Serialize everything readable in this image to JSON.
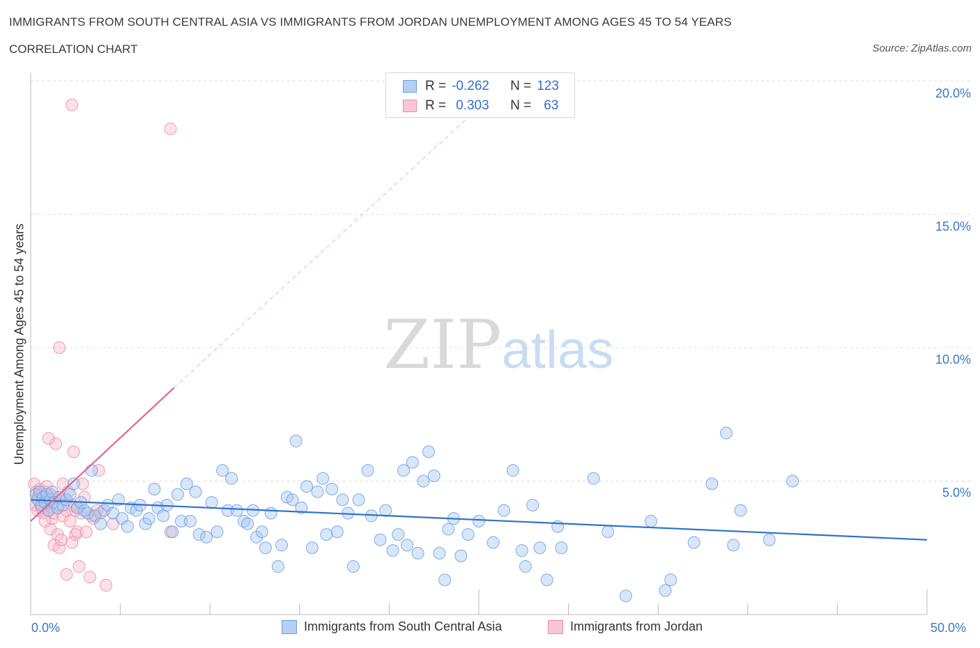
{
  "title": "IMMIGRANTS FROM SOUTH CENTRAL ASIA VS IMMIGRANTS FROM JORDAN UNEMPLOYMENT AMONG AGES 45 TO 54 YEARS",
  "subtitle": "CORRELATION CHART",
  "source": "Source: ZipAtlas.com",
  "watermark": {
    "zip": "ZIP",
    "atlas": "atlas"
  },
  "legend": {
    "r_label": "R =",
    "n_label": "N =",
    "rows": [
      {
        "r": "-0.262",
        "n": "123"
      },
      {
        "r": "0.303",
        "n": "63"
      }
    ]
  },
  "colors": {
    "blue_fill": "#a9c8ef",
    "blue_stroke": "#6a9ee0",
    "blue_line": "#2f72cc",
    "pink_fill": "#f7bccd",
    "pink_stroke": "#ec8aa8",
    "pink_line": "#e4658f",
    "tick_label": "#3a78c6",
    "grid": "#dcdcdc"
  },
  "chart_data": {
    "type": "scatter",
    "title": "IMMIGRANTS FROM SOUTH CENTRAL ASIA VS IMMIGRANTS FROM JORDAN UNEMPLOYMENT AMONG AGES 45 TO 54 YEARS",
    "xlabel": "",
    "ylabel": "Unemployment Among Ages 45 to 54 years",
    "xlim": [
      0,
      50
    ],
    "ylim": [
      0,
      20
    ],
    "x_tick_labels": [
      "0.0%",
      "50.0%"
    ],
    "y_tick_labels": [
      "5.0%",
      "10.0%",
      "15.0%",
      "20.0%"
    ],
    "y_ticks": [
      5,
      10,
      15,
      20
    ],
    "grid": true,
    "legend_position": "top-center",
    "series": [
      {
        "name": "Immigrants from South Central Asia",
        "color": "blue",
        "r": -0.262,
        "n": 123,
        "trend": {
          "x": [
            0,
            50
          ],
          "y": [
            4.3,
            2.8
          ],
          "style": "solid"
        },
        "points": [
          [
            0.3,
            4.5
          ],
          [
            0.4,
            4.3
          ],
          [
            0.5,
            4.6
          ],
          [
            0.6,
            4.1
          ],
          [
            0.7,
            4.4
          ],
          [
            0.8,
            4.2
          ],
          [
            0.9,
            4.5
          ],
          [
            1.0,
            3.9
          ],
          [
            1.1,
            4.3
          ],
          [
            1.2,
            4.6
          ],
          [
            1.3,
            4.2
          ],
          [
            1.5,
            4.0
          ],
          [
            1.6,
            4.4
          ],
          [
            1.8,
            4.1
          ],
          [
            2.0,
            4.3
          ],
          [
            2.2,
            4.5
          ],
          [
            2.4,
            4.9
          ],
          [
            2.6,
            4.0
          ],
          [
            2.8,
            4.2
          ],
          [
            3.0,
            3.9
          ],
          [
            3.2,
            3.8
          ],
          [
            3.4,
            5.4
          ],
          [
            3.6,
            3.7
          ],
          [
            3.9,
            3.4
          ],
          [
            4.1,
            3.9
          ],
          [
            4.3,
            4.1
          ],
          [
            4.6,
            3.8
          ],
          [
            4.9,
            4.3
          ],
          [
            5.1,
            3.6
          ],
          [
            5.4,
            3.3
          ],
          [
            5.6,
            4.0
          ],
          [
            5.9,
            3.9
          ],
          [
            6.1,
            4.1
          ],
          [
            6.4,
            3.4
          ],
          [
            6.6,
            3.6
          ],
          [
            6.9,
            4.7
          ],
          [
            7.1,
            4.0
          ],
          [
            7.4,
            3.7
          ],
          [
            7.6,
            4.1
          ],
          [
            7.9,
            3.1
          ],
          [
            8.2,
            4.5
          ],
          [
            8.4,
            3.5
          ],
          [
            8.7,
            4.9
          ],
          [
            8.9,
            3.5
          ],
          [
            9.2,
            4.6
          ],
          [
            9.4,
            3.0
          ],
          [
            9.8,
            2.9
          ],
          [
            10.1,
            4.2
          ],
          [
            10.4,
            3.1
          ],
          [
            10.7,
            5.4
          ],
          [
            11.0,
            3.9
          ],
          [
            11.2,
            5.1
          ],
          [
            11.5,
            3.9
          ],
          [
            11.9,
            3.5
          ],
          [
            12.1,
            3.4
          ],
          [
            12.4,
            3.9
          ],
          [
            12.6,
            2.9
          ],
          [
            12.9,
            3.1
          ],
          [
            13.1,
            2.5
          ],
          [
            13.4,
            3.8
          ],
          [
            13.8,
            1.8
          ],
          [
            14.0,
            2.6
          ],
          [
            14.3,
            4.4
          ],
          [
            14.6,
            4.3
          ],
          [
            14.8,
            6.5
          ],
          [
            15.1,
            4.0
          ],
          [
            15.4,
            4.8
          ],
          [
            15.7,
            2.5
          ],
          [
            16.0,
            4.6
          ],
          [
            16.3,
            5.1
          ],
          [
            16.5,
            3.0
          ],
          [
            16.8,
            4.7
          ],
          [
            17.1,
            3.1
          ],
          [
            17.4,
            4.3
          ],
          [
            17.7,
            3.8
          ],
          [
            18.0,
            1.8
          ],
          [
            18.3,
            4.3
          ],
          [
            18.8,
            5.4
          ],
          [
            19.0,
            3.7
          ],
          [
            19.5,
            2.8
          ],
          [
            19.8,
            3.9
          ],
          [
            20.2,
            2.4
          ],
          [
            20.5,
            3.0
          ],
          [
            20.8,
            5.4
          ],
          [
            21.0,
            2.6
          ],
          [
            21.3,
            5.7
          ],
          [
            21.6,
            2.3
          ],
          [
            21.9,
            5.0
          ],
          [
            22.2,
            6.1
          ],
          [
            22.5,
            5.2
          ],
          [
            22.8,
            2.3
          ],
          [
            23.1,
            1.3
          ],
          [
            23.3,
            3.2
          ],
          [
            23.6,
            3.6
          ],
          [
            24.0,
            2.2
          ],
          [
            24.4,
            3.0
          ],
          [
            25.0,
            3.5
          ],
          [
            25.8,
            2.7
          ],
          [
            26.4,
            3.9
          ],
          [
            26.9,
            5.4
          ],
          [
            27.4,
            2.4
          ],
          [
            27.6,
            1.8
          ],
          [
            28.0,
            4.1
          ],
          [
            28.4,
            2.5
          ],
          [
            28.8,
            1.3
          ],
          [
            29.4,
            3.3
          ],
          [
            29.6,
            2.5
          ],
          [
            31.4,
            5.1
          ],
          [
            32.2,
            3.1
          ],
          [
            33.2,
            0.7
          ],
          [
            34.6,
            3.5
          ],
          [
            35.4,
            0.9
          ],
          [
            35.7,
            1.3
          ],
          [
            37.0,
            2.7
          ],
          [
            38.0,
            4.9
          ],
          [
            38.8,
            6.8
          ],
          [
            39.2,
            2.6
          ],
          [
            39.6,
            3.9
          ],
          [
            41.2,
            2.8
          ],
          [
            42.5,
            5.0
          ]
        ]
      },
      {
        "name": "Immigrants from Jordan",
        "color": "pink",
        "r": 0.303,
        "n": 63,
        "trend": {
          "x": [
            0,
            8
          ],
          "y": [
            3.5,
            8.5
          ],
          "style": "solid",
          "extension": {
            "x": [
              8,
              25
            ],
            "y": [
              8.5,
              19.0
            ],
            "style": "dashed"
          }
        },
        "points": [
          [
            0.2,
            4.9
          ],
          [
            0.3,
            4.6
          ],
          [
            0.3,
            4.1
          ],
          [
            0.4,
            4.4
          ],
          [
            0.4,
            3.9
          ],
          [
            0.5,
            4.7
          ],
          [
            0.5,
            4.2
          ],
          [
            0.6,
            4.5
          ],
          [
            0.6,
            4.0
          ],
          [
            0.7,
            4.3
          ],
          [
            0.7,
            3.8
          ],
          [
            0.8,
            4.6
          ],
          [
            0.8,
            4.1
          ],
          [
            0.9,
            4.8
          ],
          [
            0.9,
            4.4
          ],
          [
            1.0,
            3.9
          ],
          [
            1.0,
            4.2
          ],
          [
            1.1,
            3.2
          ],
          [
            1.1,
            4.5
          ],
          [
            1.2,
            3.6
          ],
          [
            1.2,
            4.0
          ],
          [
            1.3,
            2.6
          ],
          [
            1.3,
            3.8
          ],
          [
            1.4,
            6.4
          ],
          [
            1.4,
            4.4
          ],
          [
            1.5,
            3.0
          ],
          [
            1.6,
            2.5
          ],
          [
            1.6,
            4.1
          ],
          [
            1.7,
            2.8
          ],
          [
            1.8,
            4.9
          ],
          [
            1.8,
            3.7
          ],
          [
            1.9,
            4.3
          ],
          [
            2.0,
            3.9
          ],
          [
            2.0,
            1.5
          ],
          [
            2.1,
            4.6
          ],
          [
            2.2,
            3.5
          ],
          [
            2.3,
            2.7
          ],
          [
            2.3,
            4.1
          ],
          [
            2.4,
            6.1
          ],
          [
            2.5,
            3.0
          ],
          [
            2.6,
            3.1
          ],
          [
            2.6,
            4.0
          ],
          [
            2.7,
            1.8
          ],
          [
            2.8,
            3.8
          ],
          [
            2.9,
            4.9
          ],
          [
            3.0,
            4.4
          ],
          [
            3.1,
            3.1
          ],
          [
            3.3,
            1.4
          ],
          [
            3.4,
            3.7
          ],
          [
            3.5,
            3.6
          ],
          [
            3.7,
            3.9
          ],
          [
            3.8,
            5.4
          ],
          [
            3.9,
            3.8
          ],
          [
            4.2,
            1.1
          ],
          [
            4.6,
            3.4
          ],
          [
            7.8,
            3.1
          ],
          [
            0.6,
            4.0
          ],
          [
            1.6,
            10.0
          ],
          [
            2.3,
            19.1
          ],
          [
            7.8,
            18.2
          ],
          [
            1.0,
            6.6
          ],
          [
            0.8,
            3.5
          ],
          [
            2.5,
            3.9
          ]
        ]
      }
    ]
  },
  "bottom_legend": {
    "items": [
      {
        "label": "Immigrants from South Central Asia"
      },
      {
        "label": "Immigrants from Jordan"
      }
    ]
  }
}
